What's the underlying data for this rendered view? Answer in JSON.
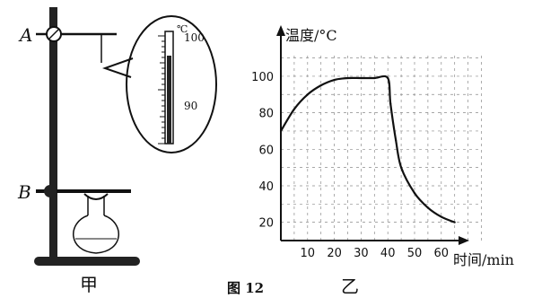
{
  "figure": {
    "number_label": "图 12",
    "apparatus": {
      "panel_label": "甲",
      "clamp_a_label": "A",
      "clamp_b_label": "B",
      "thermometer_unit": "℃",
      "thermometer_upper": "100",
      "thermometer_lower": "90"
    },
    "graph": {
      "panel_label": "乙"
    }
  },
  "chart_data": {
    "type": "line",
    "title": "",
    "xlabel": "时间/min",
    "ylabel": "温度/°C",
    "xlim": [
      0,
      75
    ],
    "ylim": [
      10,
      110
    ],
    "x_ticks": [
      10,
      20,
      30,
      40,
      50,
      60
    ],
    "y_ticks": [
      20,
      40,
      60,
      80,
      100
    ],
    "grid": true,
    "series": [
      {
        "x": [
          0,
          5,
          10,
          15,
          20,
          25,
          30,
          35,
          40,
          41,
          43,
          45,
          50,
          55,
          60,
          65
        ],
        "y": [
          70,
          82,
          90,
          95,
          98,
          99,
          99,
          99,
          99,
          85,
          65,
          50,
          36,
          28,
          23,
          20
        ]
      }
    ]
  }
}
